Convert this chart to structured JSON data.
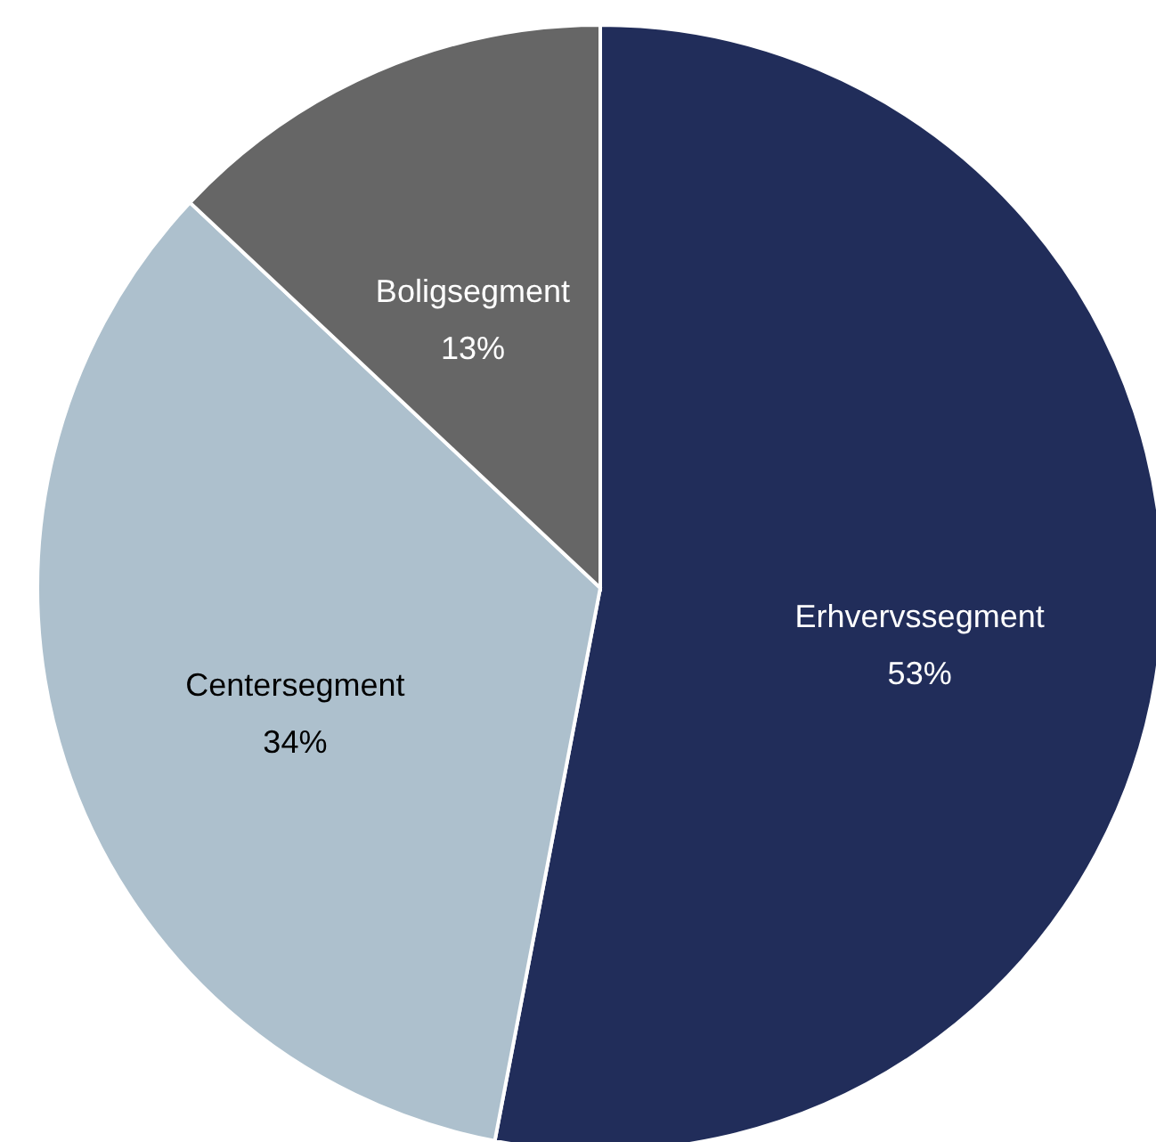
{
  "chart_data": {
    "type": "pie",
    "categories": [
      "Erhvervssegment",
      "Centersegment",
      "Boligsegment"
    ],
    "values": [
      53,
      34,
      13
    ],
    "value_labels": [
      "53%",
      "34%",
      "13%"
    ],
    "colors": [
      "#212d5a",
      "#adc0cd",
      "#666666"
    ]
  }
}
